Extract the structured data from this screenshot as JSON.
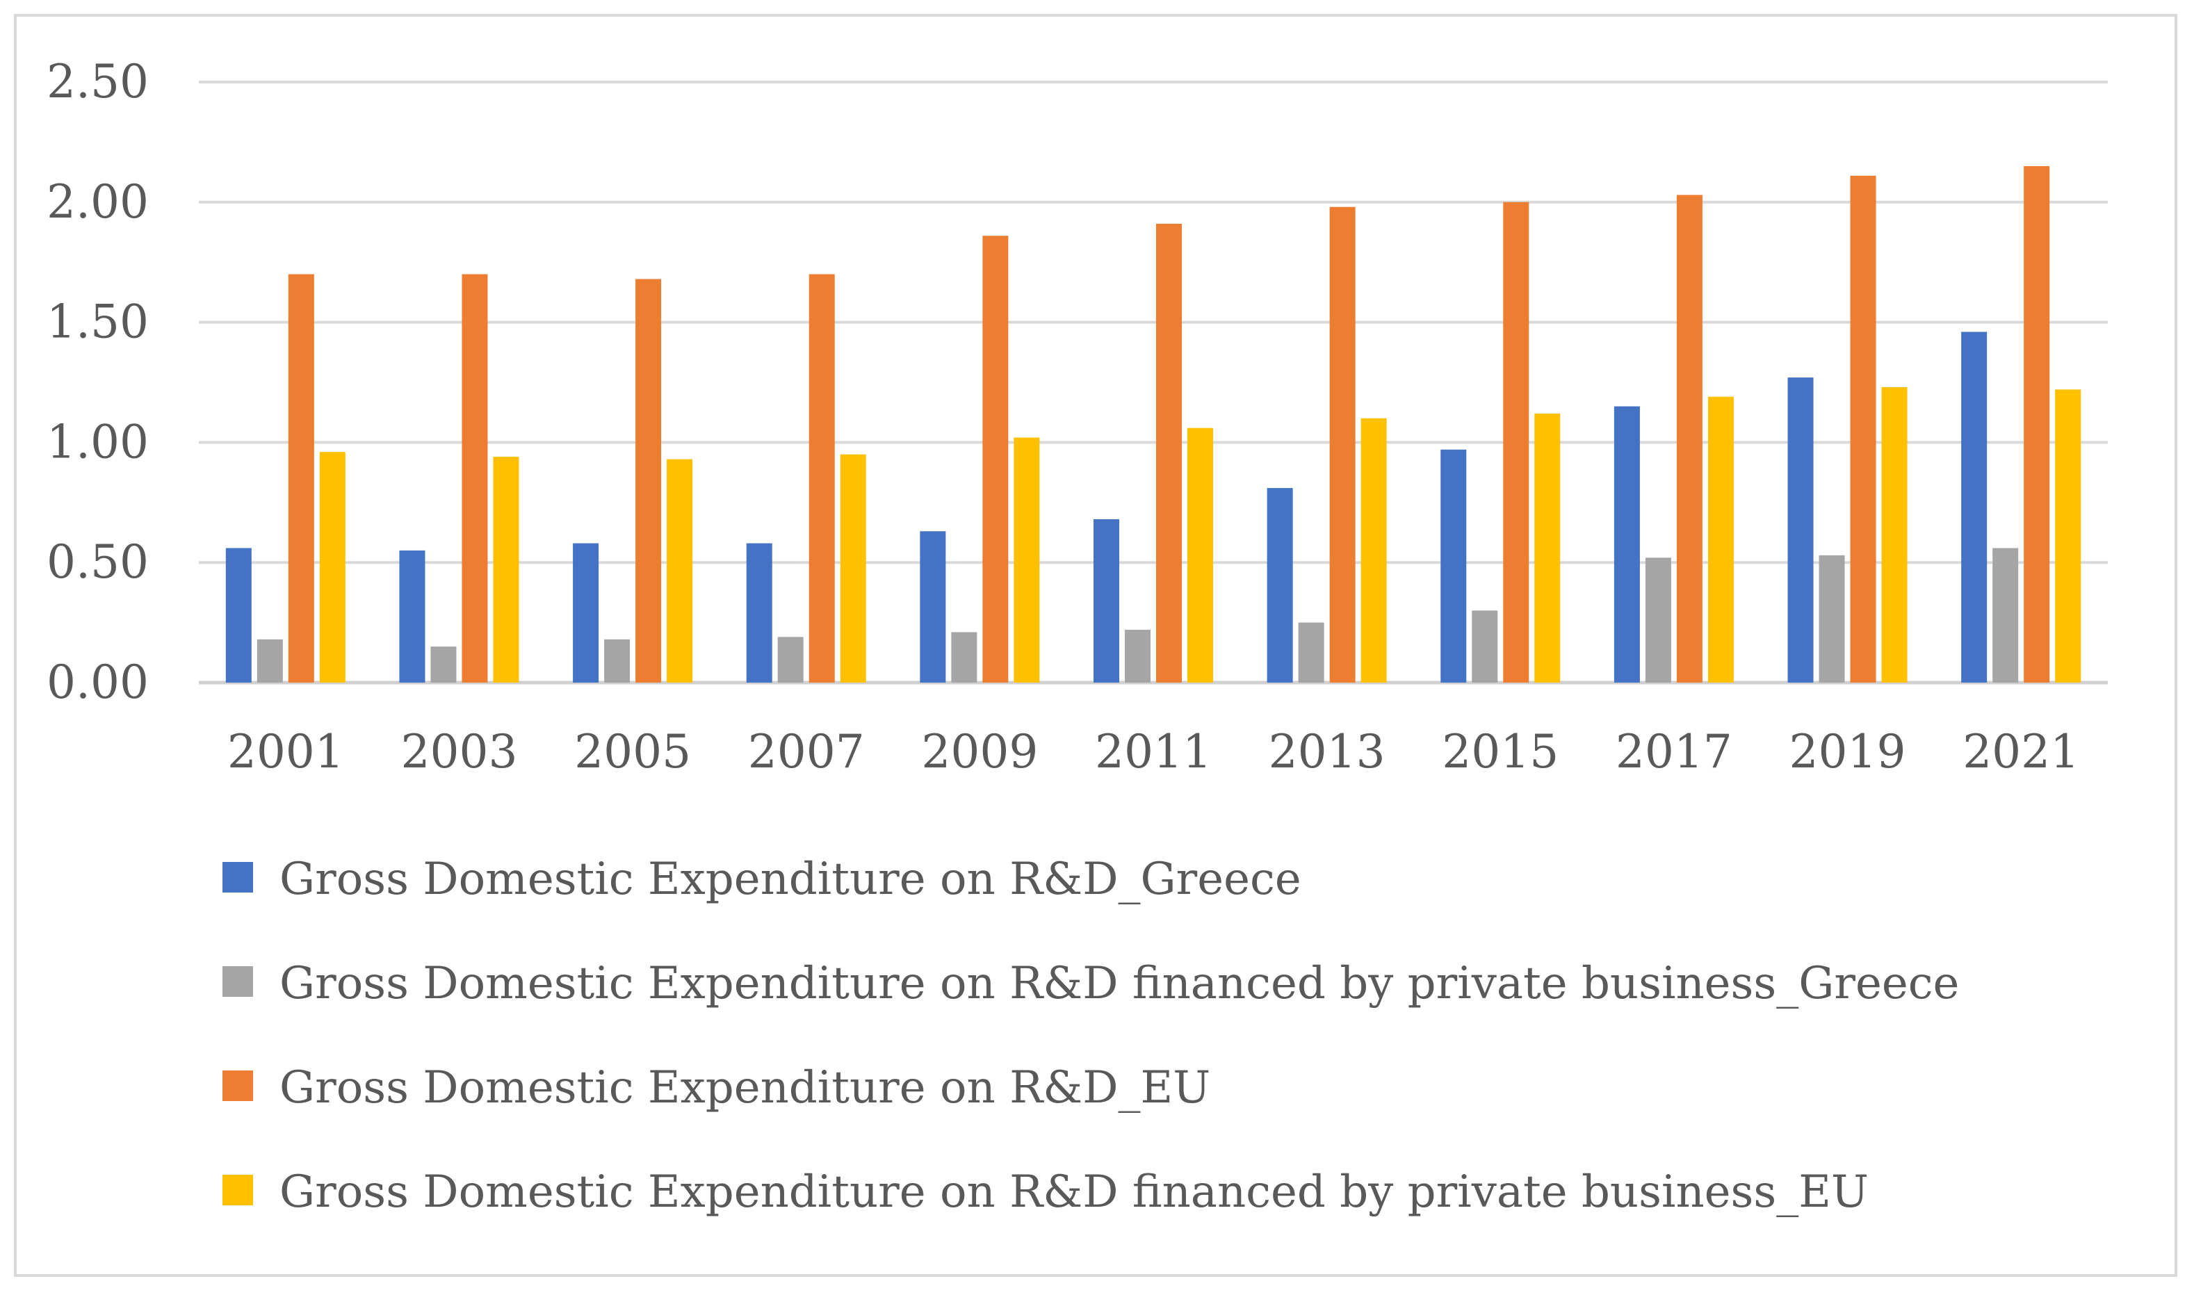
{
  "chart_data": {
    "type": "bar",
    "title": "",
    "xlabel": "",
    "ylabel": "",
    "ylim": [
      0,
      2.5
    ],
    "yticks": [
      "0.00",
      "0.50",
      "1.00",
      "1.50",
      "2.00",
      "2.50"
    ],
    "grid": true,
    "legend_position": "bottom",
    "categories": [
      "2001",
      "2003",
      "2005",
      "2007",
      "2009",
      "2011",
      "2013",
      "2015",
      "2017",
      "2019",
      "2021"
    ],
    "series": [
      {
        "name": "Gross Domestic Expenditure on R&D_Greece",
        "color": "#4472c4",
        "values": [
          0.56,
          0.55,
          0.58,
          0.58,
          0.63,
          0.68,
          0.81,
          0.97,
          1.15,
          1.27,
          1.46
        ]
      },
      {
        "name": "Gross Domestic Expenditure on R&D financed by private business_Greece",
        "color": "#a5a5a5",
        "values": [
          0.18,
          0.15,
          0.18,
          0.19,
          0.21,
          0.22,
          0.25,
          0.3,
          0.52,
          0.53,
          0.56
        ]
      },
      {
        "name": "Gross Domestic Expenditure on R&D_EU",
        "color": "#ed7d31",
        "values": [
          1.7,
          1.7,
          1.68,
          1.7,
          1.86,
          1.91,
          1.98,
          2.0,
          2.03,
          2.11,
          2.15
        ]
      },
      {
        "name": "Gross Domestic Expenditure on R&D financed by private business_EU",
        "color": "#ffc000",
        "values": [
          0.96,
          0.94,
          0.93,
          0.95,
          1.02,
          1.06,
          1.1,
          1.12,
          1.19,
          1.23,
          1.22
        ]
      }
    ]
  }
}
